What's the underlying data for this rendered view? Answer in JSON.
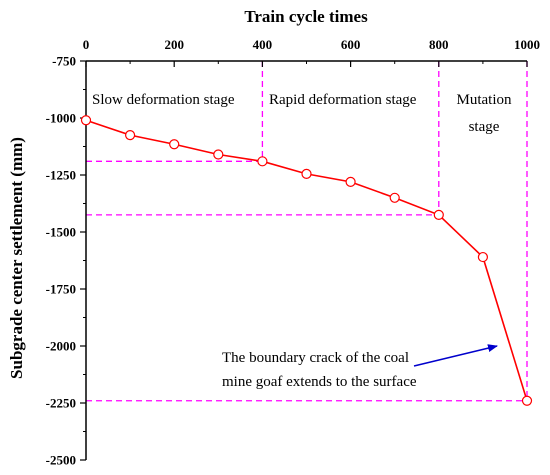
{
  "chart_data": {
    "type": "line",
    "title": "",
    "xlabel": "Train cycle times",
    "ylabel": "Subgrade center settlement (mm)",
    "xlim": [
      0,
      1000
    ],
    "ylim": [
      -2500,
      -750
    ],
    "x_axis_position": "top",
    "y_axis_direction": "downward",
    "xticks": [
      0,
      200,
      400,
      600,
      800,
      1000
    ],
    "yticks": [
      -750,
      -1000,
      -1250,
      -1500,
      -1750,
      -2000,
      -2250,
      -2500
    ],
    "series": [
      {
        "color": "#ff0000",
        "marker": "open-circle",
        "x": [
          0,
          100,
          200,
          300,
          400,
          500,
          600,
          700,
          800,
          900,
          1000
        ],
        "y": [
          -1010,
          -1075,
          -1115,
          -1160,
          -1190,
          -1245,
          -1280,
          -1350,
          -1425,
          -1610,
          -2240
        ]
      }
    ],
    "reference_lines": {
      "color": "#ff00ff",
      "style": "dashed",
      "vertical_x": [
        400,
        800,
        1000
      ],
      "horizontal": [
        {
          "y": -1190,
          "x_end": 400
        },
        {
          "y": -1425,
          "x_end": 800
        },
        {
          "y": -2240,
          "x_end": 1000
        }
      ]
    },
    "annotations": {
      "stage_slow": "Slow deformation stage",
      "stage_rapid": "Rapid deformation stage",
      "stage_mutation_1": "Mutation",
      "stage_mutation_2": "stage",
      "crack_line_1": "The boundary crack of the coal",
      "crack_line_2": "mine goaf extends to the surface",
      "arrow_color": "#0000cc"
    },
    "grid": false,
    "legend": "none"
  }
}
